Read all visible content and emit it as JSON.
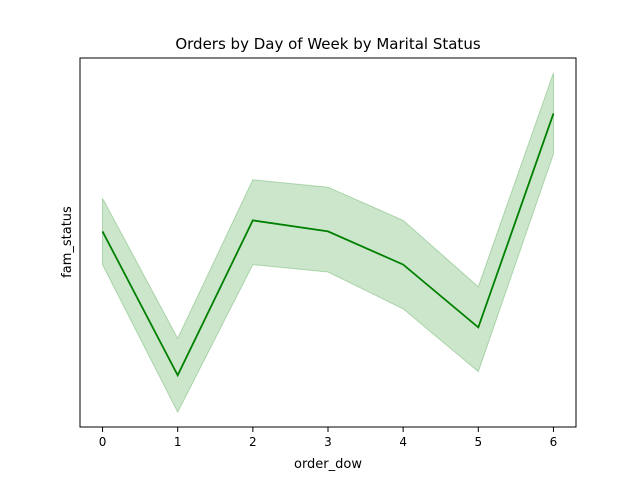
{
  "chart_data": {
    "type": "line",
    "title": "Orders by Day of Week by Marital Status",
    "xlabel": "order_dow",
    "ylabel": "fam_status",
    "x": [
      0,
      1,
      2,
      3,
      4,
      5,
      6
    ],
    "xlim": [
      -0.3,
      6.3
    ],
    "ylim": [
      0,
      100
    ],
    "y_ticks_shown": false,
    "grid": false,
    "series": [
      {
        "values": [
          53,
          14,
          56,
          53,
          44,
          27,
          85
        ],
        "ci_lower": [
          44,
          4,
          44,
          42,
          32,
          15,
          74
        ],
        "ci_upper": [
          62,
          24,
          67,
          65,
          56,
          38,
          96
        ]
      }
    ],
    "colors": {
      "line": "#008000",
      "band": "#008000",
      "band_opacity": 0.2
    }
  }
}
